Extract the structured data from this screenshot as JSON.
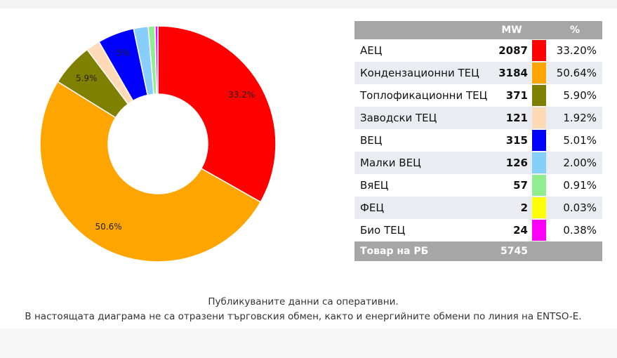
{
  "chart_data": {
    "type": "pie",
    "columns": {
      "mw": "MW",
      "pct": "%"
    },
    "slices": [
      {
        "label": "АЕЦ",
        "mw": "2087",
        "pct": "33.20%",
        "value": 33.2,
        "color": "#ff0000",
        "slice_label": "33.2%"
      },
      {
        "label": "Кондензационни ТЕЦ",
        "mw": "3184",
        "pct": "50.64%",
        "value": 50.64,
        "color": "#ffa500",
        "slice_label": "50.6%"
      },
      {
        "label": "Топлофикационни ТЕЦ",
        "mw": "371",
        "pct": "5.90%",
        "value": 5.9,
        "color": "#808000",
        "slice_label": "5.9%"
      },
      {
        "label": "Заводски ТЕЦ",
        "mw": "121",
        "pct": "1.92%",
        "value": 1.92,
        "color": "#ffdab9",
        "slice_label": ""
      },
      {
        "label": "ВЕЦ",
        "mw": "315",
        "pct": "5.01%",
        "value": 5.01,
        "color": "#0000ff",
        "slice_label": "5%"
      },
      {
        "label": "Малки ВЕЦ",
        "mw": "126",
        "pct": "2.00%",
        "value": 2.0,
        "color": "#87cefa",
        "slice_label": ""
      },
      {
        "label": "ВяЕЦ",
        "mw": "57",
        "pct": "0.91%",
        "value": 0.91,
        "color": "#90ee90",
        "slice_label": ""
      },
      {
        "label": "ФЕЦ",
        "mw": "2",
        "pct": "0.03%",
        "value": 0.03,
        "color": "#ffff00",
        "slice_label": ""
      },
      {
        "label": "Био ТЕЦ",
        "mw": "24",
        "pct": "0.38%",
        "value": 0.38,
        "color": "#ff00ff",
        "slice_label": ""
      }
    ],
    "total": {
      "label": "Товар на РБ",
      "mw": "5745"
    }
  },
  "notes": {
    "line1": "Публикуваните данни са оперативни.",
    "line2": "В настоящата диаграма не са отразени търговския обмен, както и енергийните обмени по линия на ENTSO-E."
  }
}
